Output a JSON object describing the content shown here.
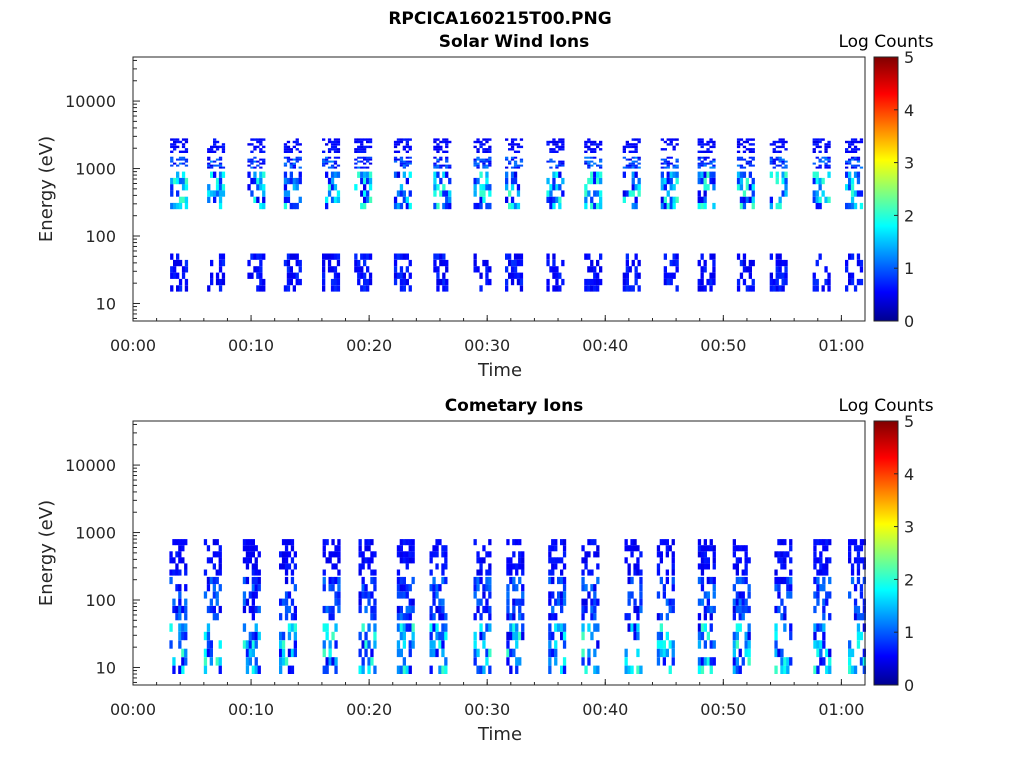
{
  "figure": {
    "filename_title": "RPCICA160215T00.PNG"
  },
  "chart_data": [
    {
      "type": "heatmap",
      "title": "Solar Wind Ions",
      "xlabel": "Time",
      "ylabel": "Energy (eV)",
      "x_scale": "time",
      "y_scale": "log",
      "xlim": [
        "00:00",
        "01:02"
      ],
      "ylim": [
        5.5,
        45000
      ],
      "x_ticks": [
        "00:00",
        "00:10",
        "00:20",
        "00:30",
        "00:40",
        "00:50",
        "01:00"
      ],
      "y_ticks": [
        "10",
        "100",
        "1000",
        "10000"
      ],
      "colorbar": {
        "label": "Log Counts",
        "min": 0,
        "max": 5,
        "ticks": [
          "0",
          "1",
          "2",
          "3",
          "4",
          "5"
        ],
        "colormap": "jet"
      },
      "scan_period_min": 3.2,
      "first_scan_min": 3.0,
      "last_scan_min": 61.2,
      "bands": [
        {
          "e_low": 15,
          "e_high": 55,
          "level_max": 0.4
        },
        {
          "e_low": 250,
          "e_high": 900,
          "level_max": 1.9
        },
        {
          "e_low": 1000,
          "e_high": 1500,
          "level_max": 0.9
        },
        {
          "e_low": 1700,
          "e_high": 2800,
          "level_max": 0.3
        }
      ]
    },
    {
      "type": "heatmap",
      "title": "Cometary Ions",
      "xlabel": "Time",
      "ylabel": "Energy (eV)",
      "x_scale": "time",
      "y_scale": "log",
      "xlim": [
        "00:00",
        "01:02"
      ],
      "ylim": [
        5.5,
        45000
      ],
      "x_ticks": [
        "00:00",
        "00:10",
        "00:20",
        "00:30",
        "00:40",
        "00:50",
        "01:00"
      ],
      "y_ticks": [
        "10",
        "100",
        "1000",
        "10000"
      ],
      "colorbar": {
        "label": "Log Counts",
        "min": 0,
        "max": 5,
        "ticks": [
          "0",
          "1",
          "2",
          "3",
          "4",
          "5"
        ],
        "colormap": "jet"
      },
      "scan_period_min": 3.2,
      "first_scan_min": 3.0,
      "last_scan_min": 61.2,
      "bands": [
        {
          "e_low": 8,
          "e_high": 45,
          "level_max": 1.9
        },
        {
          "e_low": 50,
          "e_high": 220,
          "level_max": 0.8
        },
        {
          "e_low": 230,
          "e_high": 800,
          "level_max": 0.3
        }
      ]
    }
  ]
}
